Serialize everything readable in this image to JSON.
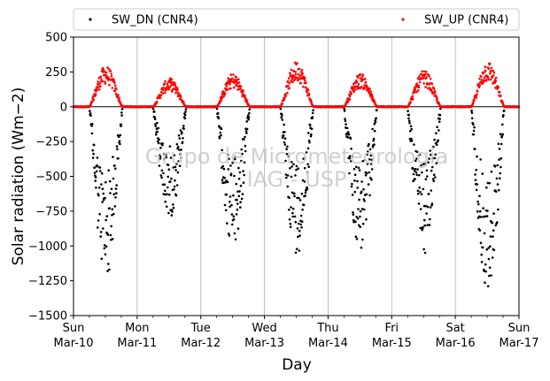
{
  "chart_data": {
    "type": "scatter",
    "title": "",
    "xlabel": "Day",
    "ylabel": "Solar radiation (Wm−2)",
    "ylim": [
      -1500,
      500
    ],
    "yticks": [
      -1500,
      -1250,
      -1000,
      -750,
      -500,
      -250,
      0,
      250,
      500
    ],
    "xlim": [
      "2024-03-10",
      "2024-03-17"
    ],
    "xticks": [
      {
        "day": "Sun",
        "date": "Mar-10"
      },
      {
        "day": "Mon",
        "date": "Mar-11"
      },
      {
        "day": "Tue",
        "date": "Mar-12"
      },
      {
        "day": "Wed",
        "date": "Mar-13"
      },
      {
        "day": "Thu",
        "date": "Mar-14"
      },
      {
        "day": "Fri",
        "date": "Mar-15"
      },
      {
        "day": "Sat",
        "date": "Mar-16"
      },
      {
        "day": "Sun",
        "date": "Mar-17"
      }
    ],
    "grid": "vertical",
    "legend_position": "top",
    "zero_line": 0,
    "series": [
      {
        "name": "SW_DN (CNR4)",
        "color": "#000000",
        "daily_minimum": [
          -1250,
          -800,
          -1035,
          -1060,
          -1050,
          -1065,
          -1340
        ]
      },
      {
        "name": "SW_UP (CNR4)",
        "color": "#ff0000",
        "daily_maximum": [
          295,
          205,
          240,
          330,
          240,
          260,
          330
        ]
      }
    ],
    "watermark": [
      "Grupo de Micrometeorologia",
      "IAG - USP"
    ]
  }
}
